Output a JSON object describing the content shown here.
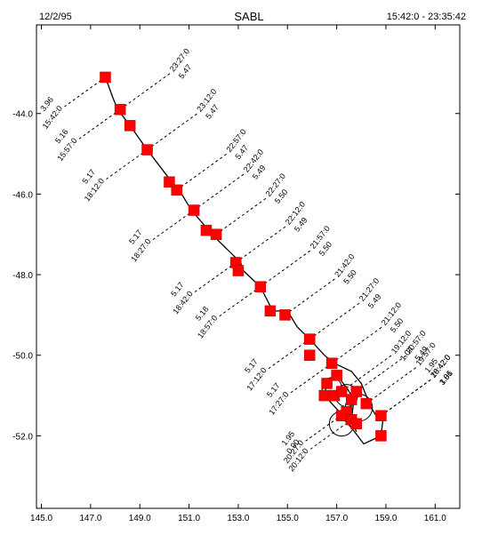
{
  "header": {
    "date": "12/2/95",
    "title": "SABL",
    "time_range": "15:42:0 - 23:35:42"
  },
  "chart_data": {
    "type": "line",
    "title": "SABL",
    "xlabel": "",
    "ylabel": "",
    "xlim": [
      144.8,
      162.0
    ],
    "ylim": [
      -53.8,
      -41.8
    ],
    "xticks": [
      "145.0",
      "147.0",
      "149.0",
      "151.0",
      "153.0",
      "155.0",
      "157.0",
      "159.0",
      "161.0"
    ],
    "yticks": [
      "-44.0",
      "-46.0",
      "-48.0",
      "-50.0",
      "-52.0"
    ],
    "grid": false,
    "colors": {
      "track": "#000000",
      "marker": "#ff0000",
      "leader": "#000000"
    },
    "track": [
      [
        147.6,
        -43.1
      ],
      [
        147.9,
        -43.6
      ],
      [
        148.1,
        -43.9
      ],
      [
        148.6,
        -44.3
      ],
      [
        149.3,
        -44.9
      ],
      [
        149.8,
        -45.3
      ],
      [
        150.3,
        -45.7
      ],
      [
        150.6,
        -45.9
      ],
      [
        151.1,
        -46.4
      ],
      [
        151.8,
        -46.9
      ],
      [
        152.1,
        -47.1
      ],
      [
        153.1,
        -47.7
      ],
      [
        153.2,
        -47.9
      ],
      [
        153.9,
        -48.3
      ],
      [
        154.4,
        -48.9
      ],
      [
        155.0,
        -48.9
      ],
      [
        155.4,
        -49.3
      ],
      [
        155.9,
        -49.6
      ],
      [
        156.5,
        -50.0
      ],
      [
        156.9,
        -50.2
      ],
      [
        157.6,
        -50.4
      ],
      [
        158.0,
        -50.7
      ],
      [
        158.2,
        -51.0
      ],
      [
        158.4,
        -51.3
      ],
      [
        158.6,
        -51.5
      ],
      [
        158.9,
        -51.5
      ],
      [
        158.8,
        -52.0
      ],
      [
        158.1,
        -52.2
      ],
      [
        157.6,
        -51.8
      ],
      [
        157.3,
        -51.6
      ],
      [
        157.1,
        -51.4
      ],
      [
        156.8,
        -51.2
      ],
      [
        156.5,
        -51.0
      ],
      [
        156.6,
        -50.7
      ],
      [
        157.0,
        -50.5
      ],
      [
        157.4,
        -50.8
      ],
      [
        157.7,
        -51.1
      ],
      [
        157.6,
        -51.6
      ],
      [
        157.8,
        -51.9
      ]
    ],
    "markers": [
      [
        147.6,
        -43.1
      ],
      [
        148.2,
        -43.9
      ],
      [
        148.6,
        -44.3
      ],
      [
        149.3,
        -44.9
      ],
      [
        150.2,
        -45.7
      ],
      [
        150.5,
        -45.9
      ],
      [
        151.2,
        -46.4
      ],
      [
        151.7,
        -46.9
      ],
      [
        152.1,
        -47.0
      ],
      [
        152.9,
        -47.7
      ],
      [
        153.0,
        -47.9
      ],
      [
        153.9,
        -48.3
      ],
      [
        154.3,
        -48.9
      ],
      [
        154.9,
        -49.0
      ],
      [
        155.9,
        -49.6
      ],
      [
        155.9,
        -50.0
      ],
      [
        156.8,
        -50.2
      ],
      [
        157.0,
        -50.5
      ],
      [
        156.6,
        -50.7
      ],
      [
        156.5,
        -51.0
      ],
      [
        156.9,
        -51.0
      ],
      [
        157.2,
        -50.9
      ],
      [
        157.6,
        -51.1
      ],
      [
        157.8,
        -50.9
      ],
      [
        158.2,
        -51.2
      ],
      [
        157.4,
        -51.4
      ],
      [
        157.2,
        -51.5
      ],
      [
        157.6,
        -51.6
      ],
      [
        157.8,
        -51.7
      ],
      [
        158.8,
        -51.5
      ],
      [
        158.8,
        -52.0
      ]
    ],
    "annotations": [
      {
        "x": 147.6,
        "y": -43.1,
        "side": "left",
        "time": "15:42:0",
        "value": "3.96"
      },
      {
        "x": 148.2,
        "y": -43.9,
        "side": "right",
        "time": "23:27:0",
        "value": "5.47"
      },
      {
        "x": 148.2,
        "y": -43.9,
        "side": "left",
        "time": "15:57:0",
        "value": "5.16"
      },
      {
        "x": 149.3,
        "y": -44.9,
        "side": "right",
        "time": "23:12:0",
        "value": "5.47"
      },
      {
        "x": 149.3,
        "y": -44.9,
        "side": "left",
        "time": "18:12:0",
        "value": "5.17"
      },
      {
        "x": 150.5,
        "y": -45.9,
        "side": "right",
        "time": "22:57:0",
        "value": "5.47"
      },
      {
        "x": 151.2,
        "y": -46.4,
        "side": "right",
        "time": "22:42:0",
        "value": "5.49"
      },
      {
        "x": 151.2,
        "y": -46.4,
        "side": "left",
        "time": "18:27:0",
        "value": "5.17"
      },
      {
        "x": 152.1,
        "y": -47.0,
        "side": "right",
        "time": "22:27:0",
        "value": "5.50"
      },
      {
        "x": 152.9,
        "y": -47.7,
        "side": "right",
        "time": "22:12:0",
        "value": "5.49"
      },
      {
        "x": 152.9,
        "y": -47.7,
        "side": "left",
        "time": "18:42:0",
        "value": "5.17"
      },
      {
        "x": 153.9,
        "y": -48.3,
        "side": "right",
        "time": "21:57:0",
        "value": "5.50"
      },
      {
        "x": 153.9,
        "y": -48.3,
        "side": "left",
        "time": "18:57:0",
        "value": "5.18"
      },
      {
        "x": 154.9,
        "y": -49.0,
        "side": "right",
        "time": "21:42:0",
        "value": "5.50"
      },
      {
        "x": 155.9,
        "y": -49.6,
        "side": "right",
        "time": "21:27:0",
        "value": "5.49"
      },
      {
        "x": 155.9,
        "y": -49.6,
        "side": "left",
        "time": "17:12:0",
        "value": "5.17"
      },
      {
        "x": 156.8,
        "y": -50.2,
        "side": "right",
        "time": "21:12:0",
        "value": "5.50"
      },
      {
        "x": 156.8,
        "y": -50.2,
        "side": "left",
        "time": "17:27:0",
        "value": "5.17"
      },
      {
        "x": 157.2,
        "y": -50.9,
        "side": "right",
        "time": "19:12:0",
        "value": "1.04"
      },
      {
        "x": 157.8,
        "y": -50.9,
        "side": "right",
        "time": "20:57:0",
        "value": "5.49"
      },
      {
        "x": 158.2,
        "y": -51.2,
        "side": "right",
        "time": "19:57:0",
        "value": "1.95"
      },
      {
        "x": 158.8,
        "y": -51.5,
        "side": "right",
        "time": "18:42:0",
        "value": "1.81"
      },
      {
        "x": 158.8,
        "y": -51.5,
        "side": "right",
        "time": "20:42:0",
        "value": "3.06"
      },
      {
        "x": 157.4,
        "y": -51.4,
        "side": "left",
        "time": "20:27:0",
        "value": "1.95"
      },
      {
        "x": 157.6,
        "y": -51.6,
        "side": "left",
        "time": "20:12:0",
        "value": "0.90"
      }
    ]
  }
}
